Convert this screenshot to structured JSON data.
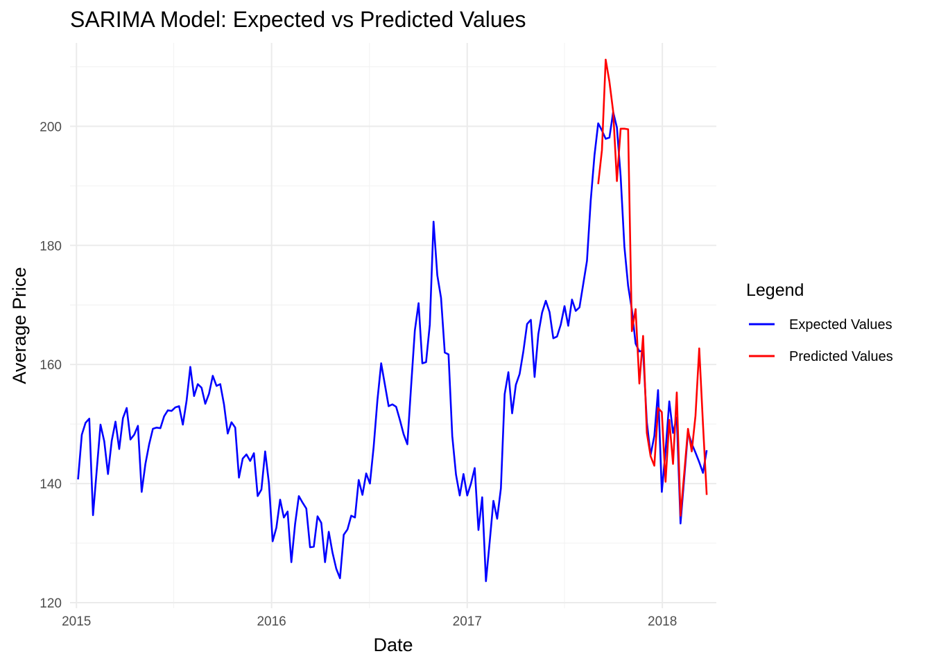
{
  "chart_data": {
    "type": "line",
    "title": "SARIMA Model: Expected vs Predicted Values",
    "xlabel": "Date",
    "ylabel": "Average Price",
    "x_ticks": [
      "2015",
      "2016",
      "2017",
      "2018"
    ],
    "y_ticks": [
      "120",
      "140",
      "160",
      "180",
      "200"
    ],
    "xlim": [
      "2014-12-20",
      "2018-04-12"
    ],
    "ylim": [
      120,
      214
    ],
    "grid": true,
    "legend": {
      "title": "Legend",
      "position": "right",
      "items": [
        {
          "label": "Expected Values",
          "color": "#0000ff"
        },
        {
          "label": "Predicted Values",
          "color": "#ff0000"
        }
      ]
    },
    "series": [
      {
        "name": "Expected Values",
        "color": "#0000ff",
        "x": [
          "2015-01-04",
          "2015-01-11",
          "2015-01-18",
          "2015-01-25",
          "2015-02-01",
          "2015-02-08",
          "2015-02-15",
          "2015-02-22",
          "2015-03-01",
          "2015-03-08",
          "2015-03-15",
          "2015-03-22",
          "2015-03-29",
          "2015-04-05",
          "2015-04-12",
          "2015-04-19",
          "2015-04-26",
          "2015-05-03",
          "2015-05-10",
          "2015-05-17",
          "2015-05-24",
          "2015-05-31",
          "2015-06-07",
          "2015-06-14",
          "2015-06-21",
          "2015-06-28",
          "2015-07-05",
          "2015-07-12",
          "2015-07-19",
          "2015-07-26",
          "2015-08-02",
          "2015-08-09",
          "2015-08-16",
          "2015-08-23",
          "2015-08-30",
          "2015-09-06",
          "2015-09-13",
          "2015-09-20",
          "2015-09-27",
          "2015-10-04",
          "2015-10-11",
          "2015-10-18",
          "2015-10-25",
          "2015-11-01",
          "2015-11-08",
          "2015-11-15",
          "2015-11-22",
          "2015-11-29",
          "2015-12-06",
          "2015-12-13",
          "2015-12-20",
          "2015-12-27",
          "2016-01-03",
          "2016-01-10",
          "2016-01-17",
          "2016-01-24",
          "2016-01-31",
          "2016-02-07",
          "2016-02-14",
          "2016-02-21",
          "2016-02-28",
          "2016-03-06",
          "2016-03-13",
          "2016-03-20",
          "2016-03-27",
          "2016-04-03",
          "2016-04-10",
          "2016-04-17",
          "2016-04-24",
          "2016-05-01",
          "2016-05-08",
          "2016-05-15",
          "2016-05-22",
          "2016-05-29",
          "2016-06-05",
          "2016-06-12",
          "2016-06-19",
          "2016-06-26",
          "2016-07-03",
          "2016-07-10",
          "2016-07-17",
          "2016-07-24",
          "2016-07-31",
          "2016-08-07",
          "2016-08-14",
          "2016-08-21",
          "2016-08-28",
          "2016-09-04",
          "2016-09-11",
          "2016-09-18",
          "2016-09-25",
          "2016-10-02",
          "2016-10-09",
          "2016-10-16",
          "2016-10-23",
          "2016-10-30",
          "2016-11-06",
          "2016-11-13",
          "2016-11-20",
          "2016-11-27",
          "2016-12-04",
          "2016-12-11",
          "2016-12-18",
          "2016-12-25",
          "2017-01-01",
          "2017-01-08",
          "2017-01-15",
          "2017-01-22",
          "2017-01-29",
          "2017-02-05",
          "2017-02-12",
          "2017-02-19",
          "2017-02-26",
          "2017-03-05",
          "2017-03-12",
          "2017-03-19",
          "2017-03-26",
          "2017-04-02",
          "2017-04-09",
          "2017-04-16",
          "2017-04-23",
          "2017-04-30",
          "2017-05-07",
          "2017-05-14",
          "2017-05-21",
          "2017-05-28",
          "2017-06-04",
          "2017-06-11",
          "2017-06-18",
          "2017-06-25",
          "2017-07-02",
          "2017-07-09",
          "2017-07-16",
          "2017-07-23",
          "2017-07-30",
          "2017-08-06",
          "2017-08-13",
          "2017-08-20",
          "2017-08-27",
          "2017-09-03",
          "2017-09-10",
          "2017-09-17",
          "2017-09-24",
          "2017-10-01",
          "2017-10-08",
          "2017-10-15",
          "2017-10-22",
          "2017-10-29",
          "2017-11-05",
          "2017-11-12",
          "2017-11-19",
          "2017-11-26",
          "2017-12-03",
          "2017-12-10",
          "2017-12-17",
          "2017-12-24",
          "2017-12-31",
          "2018-01-07",
          "2018-01-14",
          "2018-01-21",
          "2018-01-28",
          "2018-02-04",
          "2018-02-11",
          "2018-02-18",
          "2018-02-25",
          "2018-03-04",
          "2018-03-11",
          "2018-03-18",
          "2018-03-25"
        ],
        "values": [
          140.7,
          148.2,
          150.2,
          150.9,
          134.7,
          142.3,
          149.9,
          147.1,
          141.6,
          147.2,
          150.4,
          145.8,
          151.0,
          152.7,
          147.4,
          148.2,
          149.7,
          138.6,
          143.3,
          146.6,
          149.2,
          149.4,
          149.3,
          151.3,
          152.3,
          152.2,
          152.8,
          153.0,
          149.9,
          153.9,
          159.6,
          154.7,
          156.7,
          156.1,
          153.4,
          155.1,
          158.1,
          156.4,
          156.7,
          153.3,
          148.4,
          150.3,
          149.4,
          141.0,
          144.2,
          144.9,
          143.8,
          145.1,
          137.9,
          139.0,
          145.4,
          140.1,
          130.3,
          132.6,
          137.3,
          134.3,
          135.3,
          126.8,
          133.2,
          137.9,
          136.8,
          135.8,
          129.3,
          129.4,
          134.5,
          133.4,
          126.8,
          131.9,
          128.4,
          125.7,
          124.1,
          131.4,
          132.3,
          134.6,
          134.3,
          140.6,
          138.1,
          141.7,
          140.0,
          146.2,
          154.0,
          160.2,
          156.6,
          153.0,
          153.3,
          152.9,
          150.7,
          148.3,
          146.6,
          156.3,
          165.7,
          170.3,
          160.2,
          160.4,
          166.7,
          184.0,
          175.0,
          171.2,
          162.0,
          161.7,
          148.0,
          141.5,
          138.0,
          141.6,
          138.0,
          140.0,
          142.6,
          132.2,
          137.7,
          123.6,
          130.2,
          137.1,
          134.1,
          139.2,
          155.0,
          158.7,
          151.8,
          156.6,
          158.4,
          162.2,
          166.8,
          167.5,
          157.9,
          165.1,
          168.7,
          170.7,
          168.8,
          164.4,
          164.7,
          166.7,
          169.8,
          166.5,
          170.9,
          169.0,
          169.6,
          173.5,
          177.4,
          187.5,
          195.1,
          200.5,
          199.3,
          197.9,
          198.1,
          202.4,
          199.8,
          191.6,
          179.8,
          173.2,
          169.2,
          163.5,
          162.2,
          162.3,
          150.3,
          144.8,
          148.0,
          155.7,
          138.6,
          145.5,
          153.8,
          148.5,
          151.1,
          133.3,
          141.0,
          148.7,
          146.7,
          145.2,
          143.6,
          141.8,
          145.6
        ]
      },
      {
        "name": "Predicted Values",
        "color": "#ff0000",
        "x": [
          "2017-09-03",
          "2017-09-10",
          "2017-09-17",
          "2017-09-24",
          "2017-10-01",
          "2017-10-08",
          "2017-10-15",
          "2017-10-22",
          "2017-10-29",
          "2017-11-05",
          "2017-11-12",
          "2017-11-19",
          "2017-11-26",
          "2017-12-03",
          "2017-12-10",
          "2017-12-17",
          "2017-12-24",
          "2017-12-31",
          "2018-01-07",
          "2018-01-14",
          "2018-01-21",
          "2018-01-28",
          "2018-02-04",
          "2018-02-11",
          "2018-02-18",
          "2018-02-25",
          "2018-03-04",
          "2018-03-11",
          "2018-03-18",
          "2018-03-25"
        ],
        "values": [
          190.3,
          196.0,
          211.2,
          207.5,
          202.5,
          190.8,
          199.6,
          199.6,
          199.5,
          165.6,
          169.3,
          156.8,
          164.8,
          148.5,
          144.6,
          143.0,
          152.7,
          152.0,
          140.3,
          150.7,
          143.3,
          155.3,
          134.6,
          141.8,
          149.2,
          145.4,
          151.4,
          162.7,
          150.0,
          138.1
        ]
      }
    ]
  }
}
